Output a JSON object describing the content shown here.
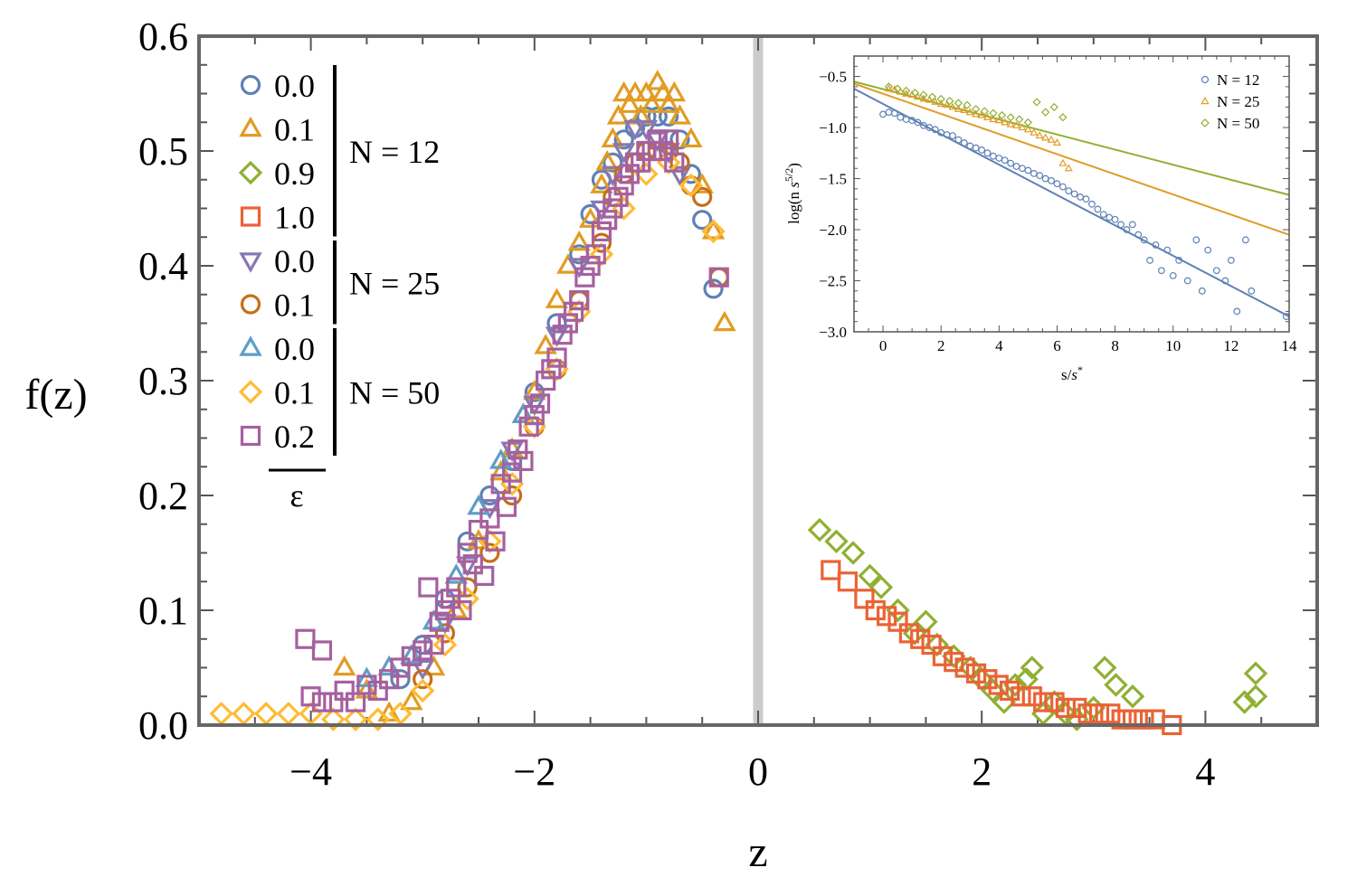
{
  "chart_data": [
    {
      "type": "scatter",
      "title": "",
      "xlabel": "z",
      "ylabel": "f(z)",
      "xlim": [
        -5.0,
        5.0
      ],
      "ylim": [
        0.0,
        0.6
      ],
      "x_ticks": [
        -4,
        -2,
        0,
        2,
        4
      ],
      "x_tick_labels": [
        "−4",
        "−2",
        "0",
        "2",
        "4"
      ],
      "y_ticks": [
        0.0,
        0.1,
        0.2,
        0.3,
        0.4,
        0.5,
        0.6
      ],
      "y_tick_labels": [
        "0.0",
        "0.1",
        "0.2",
        "0.3",
        "0.4",
        "0.5",
        "0.6"
      ],
      "vertical_line_at": 0,
      "legend_epsilon_label": "ε",
      "legend_groups": [
        {
          "label": "N = 12",
          "entries": [
            "s0",
            "s1",
            "s2",
            "s3"
          ]
        },
        {
          "label": "N = 25",
          "entries": [
            "s4",
            "s5"
          ]
        },
        {
          "label": "N = 50",
          "entries": [
            "s6",
            "s7",
            "s8"
          ]
        }
      ],
      "series": [
        {
          "id": "s0",
          "name": "0.0",
          "N": 12,
          "marker": "circle",
          "color": "#5e81b5",
          "x": [
            -3.2,
            -3.0,
            -2.8,
            -2.6,
            -2.4,
            -2.2,
            -2.0,
            -1.8,
            -1.6,
            -1.5,
            -1.4,
            -1.3,
            -1.2,
            -1.1,
            -1.0,
            -0.9,
            -0.8,
            -0.7,
            -0.6,
            -0.5,
            -0.4
          ],
          "y": [
            0.04,
            0.07,
            0.11,
            0.16,
            0.2,
            0.23,
            0.29,
            0.35,
            0.41,
            0.445,
            0.475,
            0.49,
            0.51,
            0.52,
            0.53,
            0.53,
            0.53,
            0.51,
            0.48,
            0.44,
            0.38
          ]
        },
        {
          "id": "s1",
          "name": "0.1",
          "N": 12,
          "marker": "triangle-up",
          "color": "#e19c24",
          "x": [
            -3.7,
            -3.5,
            -3.3,
            -3.1,
            -2.9,
            -2.7,
            -2.5,
            -2.3,
            -2.2,
            -2.1,
            -2.0,
            -1.9,
            -1.8,
            -1.7,
            -1.6,
            -1.5,
            -1.4,
            -1.35,
            -1.3,
            -1.25,
            -1.2,
            -1.15,
            -1.1,
            -1.05,
            -1.0,
            -0.95,
            -0.9,
            -0.85,
            -0.8,
            -0.75,
            -0.7,
            -0.6,
            -0.5,
            -0.4,
            -0.3
          ],
          "y": [
            0.05,
            0.03,
            0.01,
            0.02,
            0.05,
            0.1,
            0.16,
            0.22,
            0.24,
            0.27,
            0.29,
            0.33,
            0.37,
            0.4,
            0.42,
            0.44,
            0.47,
            0.49,
            0.51,
            0.53,
            0.55,
            0.54,
            0.55,
            0.53,
            0.55,
            0.54,
            0.56,
            0.55,
            0.54,
            0.55,
            0.53,
            0.51,
            0.47,
            0.43,
            0.35
          ]
        },
        {
          "id": "s2",
          "name": "0.9",
          "N": 12,
          "marker": "diamond",
          "color": "#8fb032",
          "x": [
            0.55,
            0.7,
            0.85,
            1.0,
            1.1,
            1.25,
            1.4,
            1.5,
            1.6,
            1.75,
            1.9,
            2.0,
            2.1,
            2.2,
            2.3,
            2.4,
            2.45,
            2.55,
            2.65,
            2.75,
            2.85,
            3.0,
            3.1,
            3.2,
            3.35,
            4.35,
            4.45,
            4.45
          ],
          "y": [
            0.17,
            0.16,
            0.15,
            0.13,
            0.12,
            0.1,
            0.08,
            0.09,
            0.07,
            0.06,
            0.05,
            0.04,
            0.03,
            0.02,
            0.035,
            0.04,
            0.05,
            0.01,
            0.02,
            0.01,
            0.005,
            0.015,
            0.05,
            0.035,
            0.025,
            0.02,
            0.045,
            0.025
          ]
        },
        {
          "id": "s3",
          "name": "1.0",
          "N": 12,
          "marker": "square",
          "color": "#eb6235",
          "x": [
            0.65,
            0.8,
            0.95,
            1.05,
            1.15,
            1.25,
            1.35,
            1.45,
            1.55,
            1.65,
            1.75,
            1.85,
            1.95,
            2.05,
            2.15,
            2.25,
            2.35,
            2.45,
            2.55,
            2.65,
            2.75,
            2.85,
            2.95,
            3.05,
            3.15,
            3.25,
            3.35,
            3.45,
            3.55,
            3.7
          ],
          "y": [
            0.135,
            0.125,
            0.11,
            0.1,
            0.095,
            0.09,
            0.08,
            0.075,
            0.07,
            0.06,
            0.055,
            0.05,
            0.045,
            0.04,
            0.035,
            0.03,
            0.025,
            0.025,
            0.02,
            0.02,
            0.015,
            0.015,
            0.01,
            0.01,
            0.01,
            0.005,
            0.005,
            0.005,
            0.005,
            0.0
          ]
        },
        {
          "id": "s4",
          "name": "0.0",
          "N": 25,
          "marker": "triangle-down",
          "color": "#8778b3",
          "x": [
            -3.0,
            -2.8,
            -2.6,
            -2.4,
            -2.2,
            -2.0,
            -1.8,
            -1.6,
            -1.4,
            -1.3,
            -1.2,
            -1.1,
            -1.0,
            -0.9,
            -0.8,
            -0.7
          ],
          "y": [
            0.05,
            0.09,
            0.14,
            0.19,
            0.24,
            0.28,
            0.34,
            0.4,
            0.45,
            0.48,
            0.5,
            0.52,
            0.52,
            0.51,
            0.5,
            0.48
          ]
        },
        {
          "id": "s5",
          "name": "0.1",
          "N": 25,
          "marker": "circle",
          "color": "#c56e1a",
          "x": [
            -3.0,
            -2.8,
            -2.6,
            -2.4,
            -2.2,
            -2.0,
            -1.8,
            -1.6,
            -1.4,
            -1.3,
            -1.2,
            -1.1,
            -1.0,
            -0.9,
            -0.8,
            -0.7,
            -0.6,
            -0.5,
            -0.35
          ],
          "y": [
            0.04,
            0.08,
            0.12,
            0.15,
            0.2,
            0.26,
            0.31,
            0.37,
            0.42,
            0.46,
            0.48,
            0.49,
            0.5,
            0.5,
            0.5,
            0.49,
            0.47,
            0.46,
            0.39
          ]
        },
        {
          "id": "s6",
          "name": "0.0",
          "N": 50,
          "marker": "triangle-up",
          "color": "#5d9ec7",
          "x": [
            -3.5,
            -3.3,
            -3.1,
            -2.9,
            -2.7,
            -2.5,
            -2.3,
            -2.1
          ],
          "y": [
            0.04,
            0.05,
            0.06,
            0.09,
            0.13,
            0.19,
            0.23,
            0.27
          ]
        },
        {
          "id": "s7",
          "name": "0.1",
          "N": 50,
          "marker": "diamond",
          "color": "#ffbb33",
          "x": [
            -4.8,
            -4.6,
            -4.4,
            -4.2,
            -4.0,
            -3.8,
            -3.6,
            -3.4,
            -3.2,
            -3.0,
            -2.8,
            -2.6,
            -2.4,
            -2.2,
            -2.0,
            -1.8,
            -1.6,
            -1.4,
            -1.2,
            -1.0,
            -0.8,
            -0.6,
            -0.4
          ],
          "y": [
            0.01,
            0.01,
            0.01,
            0.01,
            0.01,
            0.005,
            0.005,
            0.005,
            0.01,
            0.03,
            0.07,
            0.11,
            0.16,
            0.21,
            0.26,
            0.31,
            0.36,
            0.41,
            0.45,
            0.48,
            0.49,
            0.47,
            0.43
          ]
        },
        {
          "id": "s8",
          "name": "0.2",
          "N": 50,
          "marker": "square",
          "color": "#a6609f",
          "x": [
            -4.05,
            -3.9,
            -4.0,
            -3.9,
            -3.8,
            -3.7,
            -3.6,
            -3.5,
            -3.4,
            -3.3,
            -3.2,
            -3.1,
            -3.0,
            -2.95,
            -2.9,
            -2.85,
            -2.8,
            -2.75,
            -2.7,
            -2.65,
            -2.6,
            -2.55,
            -2.5,
            -2.45,
            -2.4,
            -2.35,
            -2.3,
            -2.25,
            -2.2,
            -2.15,
            -2.1,
            -2.05,
            -2.0,
            -1.95,
            -1.9,
            -1.85,
            -1.8,
            -1.75,
            -1.7,
            -1.65,
            -1.6,
            -1.55,
            -1.5,
            -1.45,
            -1.4,
            -1.35,
            -1.3,
            -1.25,
            -1.2,
            -1.15,
            -1.1,
            -1.05,
            -1.0,
            -0.95,
            -0.9,
            -0.85,
            -0.8,
            -0.75,
            -0.35
          ],
          "y": [
            0.075,
            0.065,
            0.025,
            0.02,
            0.02,
            0.03,
            0.02,
            0.035,
            0.03,
            0.04,
            0.05,
            0.06,
            0.065,
            0.12,
            0.07,
            0.09,
            0.1,
            0.11,
            0.12,
            0.1,
            0.15,
            0.14,
            0.17,
            0.13,
            0.18,
            0.16,
            0.21,
            0.19,
            0.22,
            0.24,
            0.23,
            0.26,
            0.27,
            0.28,
            0.3,
            0.31,
            0.32,
            0.34,
            0.35,
            0.36,
            0.37,
            0.39,
            0.4,
            0.41,
            0.43,
            0.44,
            0.45,
            0.46,
            0.47,
            0.48,
            0.49,
            0.49,
            0.5,
            0.5,
            0.51,
            0.5,
            0.51,
            0.49,
            0.39
          ]
        }
      ]
    },
    {
      "type": "scatter",
      "title": "",
      "xlabel": "s/s*",
      "ylabel": "log(n s^{5/2})",
      "ylabel_parts": {
        "prefix": "log(n ",
        "var": "s",
        "sup": "5/2",
        "suffix": ")"
      },
      "xlabel_parts": {
        "prefix": "s/",
        "var": "s",
        "sup": "*"
      },
      "xlim": [
        -1,
        14
      ],
      "ylim": [
        -3.0,
        -0.3
      ],
      "x_ticks": [
        0,
        2,
        4,
        6,
        8,
        10,
        12,
        14
      ],
      "x_tick_labels": [
        "0",
        "2",
        "4",
        "6",
        "8",
        "10",
        "12",
        "14"
      ],
      "y_ticks": [
        -0.5,
        -1.0,
        -1.5,
        -2.0,
        -2.5,
        -3.0
      ],
      "y_tick_labels": [
        "−0.5",
        "−1.0",
        "−1.5",
        "−2.0",
        "−2.5",
        "−3.0"
      ],
      "legend_position": "top-right",
      "series": [
        {
          "name": "N = 12",
          "marker": "circle",
          "color": "#5e81b5",
          "x": [
            0.0,
            0.2,
            0.4,
            0.6,
            0.8,
            1.0,
            1.2,
            1.4,
            1.6,
            1.8,
            2.0,
            2.2,
            2.4,
            2.6,
            2.8,
            3.0,
            3.2,
            3.4,
            3.6,
            3.8,
            4.0,
            4.2,
            4.4,
            4.6,
            4.8,
            5.0,
            5.2,
            5.4,
            5.6,
            5.8,
            6.0,
            6.2,
            6.4,
            6.6,
            6.8,
            7.0,
            7.2,
            7.4,
            7.6,
            7.8,
            8.0,
            8.2,
            8.4,
            8.6,
            8.8,
            9.0,
            9.2,
            9.4,
            9.6,
            9.8,
            10.0,
            10.2,
            10.5,
            10.8,
            11.0,
            11.2,
            11.5,
            11.8,
            12.0,
            12.2,
            12.5,
            12.7,
            13.9
          ],
          "y": [
            -0.87,
            -0.85,
            -0.86,
            -0.9,
            -0.92,
            -0.93,
            -0.95,
            -0.98,
            -1.0,
            -1.02,
            -1.05,
            -1.07,
            -1.08,
            -1.12,
            -1.15,
            -1.18,
            -1.2,
            -1.22,
            -1.25,
            -1.28,
            -1.3,
            -1.32,
            -1.35,
            -1.38,
            -1.4,
            -1.42,
            -1.45,
            -1.47,
            -1.5,
            -1.52,
            -1.55,
            -1.58,
            -1.62,
            -1.65,
            -1.68,
            -1.7,
            -1.75,
            -1.8,
            -1.85,
            -1.88,
            -1.9,
            -1.95,
            -2.0,
            -1.95,
            -2.05,
            -2.1,
            -2.3,
            -2.15,
            -2.4,
            -2.2,
            -2.45,
            -2.3,
            -2.5,
            -2.1,
            -2.6,
            -2.2,
            -2.4,
            -2.5,
            -2.3,
            -2.8,
            -2.1,
            -2.6,
            -2.85
          ]
        },
        {
          "name": "N = 25",
          "marker": "triangle-up",
          "color": "#e19c24",
          "x": [
            0.2,
            0.4,
            0.6,
            0.8,
            1.0,
            1.2,
            1.4,
            1.6,
            1.8,
            2.0,
            2.2,
            2.4,
            2.6,
            2.8,
            3.0,
            3.2,
            3.4,
            3.6,
            3.8,
            4.0,
            4.2,
            4.4,
            4.6,
            4.8,
            5.0,
            5.2,
            5.4,
            5.6,
            5.8,
            6.0,
            6.2,
            6.4
          ],
          "y": [
            -0.62,
            -0.63,
            -0.65,
            -0.67,
            -0.68,
            -0.7,
            -0.72,
            -0.73,
            -0.75,
            -0.77,
            -0.78,
            -0.8,
            -0.82,
            -0.83,
            -0.85,
            -0.87,
            -0.88,
            -0.9,
            -0.92,
            -0.93,
            -0.95,
            -0.97,
            -0.98,
            -1.0,
            -1.02,
            -1.05,
            -1.08,
            -1.1,
            -1.12,
            -1.15,
            -1.35,
            -1.4
          ]
        },
        {
          "name": "N = 50",
          "marker": "diamond",
          "color": "#8fb032",
          "x": [
            0.2,
            0.5,
            0.8,
            1.1,
            1.4,
            1.7,
            2.0,
            2.3,
            2.6,
            2.9,
            3.2,
            3.5,
            3.8,
            4.1,
            4.4,
            4.7,
            5.0,
            5.3,
            5.6,
            5.9,
            6.2
          ],
          "y": [
            -0.6,
            -0.62,
            -0.64,
            -0.66,
            -0.68,
            -0.7,
            -0.72,
            -0.74,
            -0.76,
            -0.78,
            -0.82,
            -0.84,
            -0.86,
            -0.88,
            -0.9,
            -0.92,
            -0.95,
            -0.75,
            -0.85,
            -0.8,
            -0.9
          ]
        }
      ],
      "fit_lines": [
        {
          "name": "N = 12 fit",
          "color": "#5e81b5",
          "x": [
            -1,
            14
          ],
          "y": [
            -0.62,
            -2.85
          ]
        },
        {
          "name": "N = 25 fit",
          "color": "#e19c24",
          "x": [
            -1,
            14
          ],
          "y": [
            -0.57,
            -2.05
          ]
        },
        {
          "name": "N = 50 fit",
          "color": "#8fb032",
          "x": [
            -1,
            14
          ],
          "y": [
            -0.55,
            -1.66
          ]
        }
      ]
    }
  ]
}
